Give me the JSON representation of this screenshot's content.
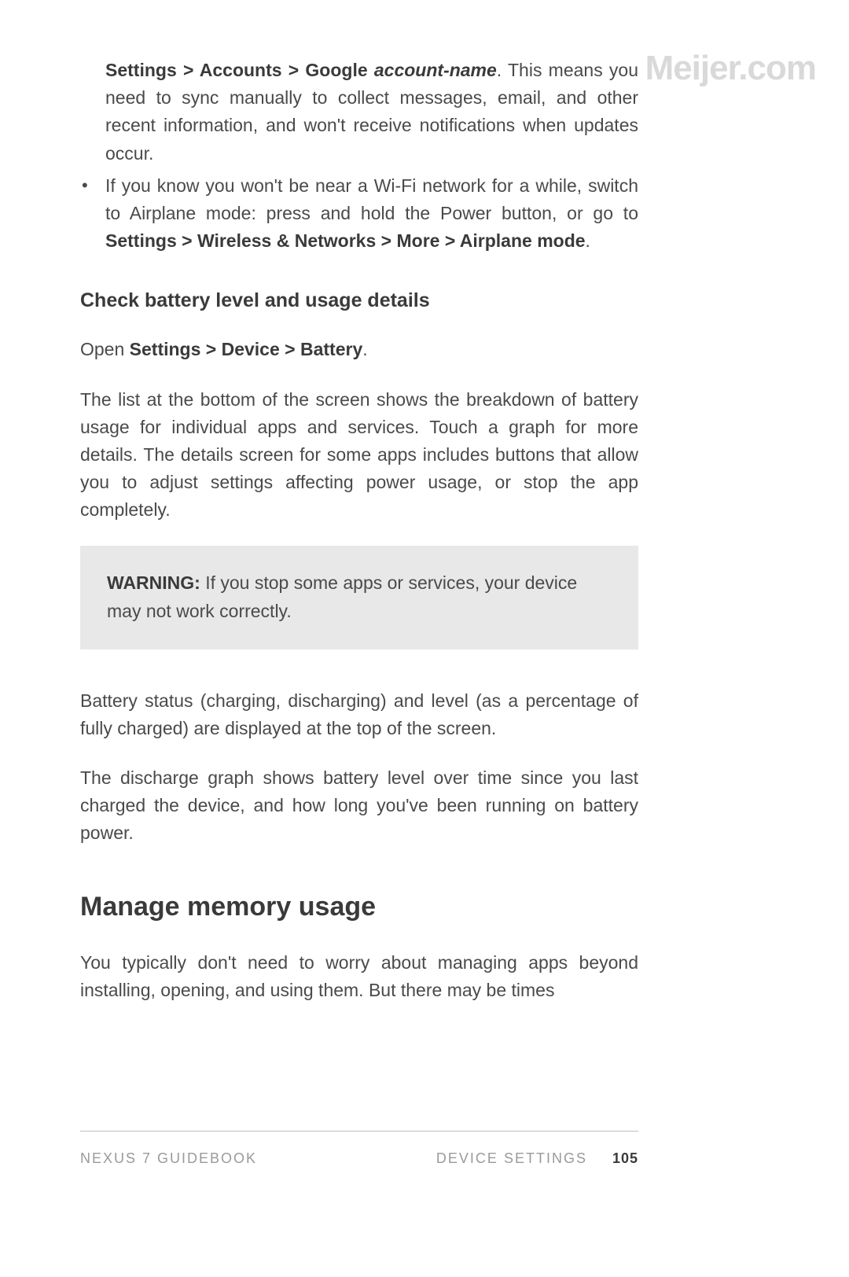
{
  "watermark": "Meijer.com",
  "bullets": {
    "first": {
      "bold1": "Settings > Accounts > Google ",
      "ital": "account-name",
      "tail": ". This means you need to sync manually to collect messages, email, and other recent information, and won't receive notifications when updates occur."
    },
    "second": {
      "lead": "If you know you won't be near a Wi-Fi network for a while, switch to Airplane mode: press and hold the Power button, or go to ",
      "bold": "Settings > Wireless & Networks > More > Airplane mode",
      "tail": "."
    }
  },
  "subheading": "Check battery level and usage details",
  "open_line": {
    "lead": "Open ",
    "bold": "Settings > Device > Battery",
    "tail": "."
  },
  "para1": "The list at the bottom of the screen shows the breakdown of battery usage for individual apps and services. Touch a graph for more details. The details screen for some apps includes buttons that allow you to adjust settings affecting power usage, or stop the app completely.",
  "warning": {
    "label": "WARNING:",
    "text": " If you stop some apps or services, your device may not work correctly."
  },
  "para2": "Battery status (charging, discharging) and level (as a percentage of fully charged) are displayed at the top of the screen.",
  "para3": "The discharge graph shows battery level over time since you last charged the device, and how long you've been running on battery power.",
  "main_heading": "Manage memory usage",
  "para4": "You typically don't need to worry about managing apps beyond installing, opening, and using them. But there may be times",
  "footer": {
    "left": "NEXUS 7 GUIDEBOOK",
    "right": "DEVICE SETTINGS",
    "page": "105"
  }
}
